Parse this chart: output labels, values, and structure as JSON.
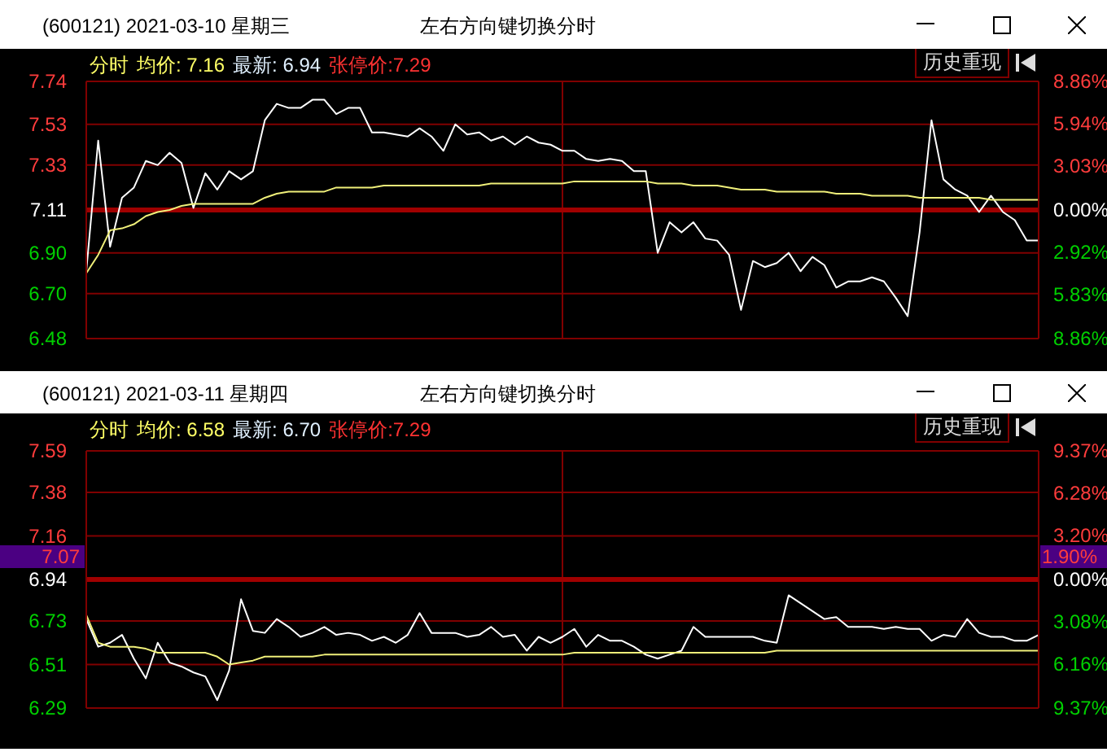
{
  "chart_data": [
    {
      "type": "line",
      "title": "(600121) 2021-03-10 星期三",
      "annotations": [
        "分时",
        "均价: 7.16",
        "最新: 6.94",
        "张停价:7.29",
        "左右方向键切换分时",
        "历史重现"
      ],
      "categories": [
        null,
        null,
        null,
        null,
        null,
        null,
        null,
        null,
        null,
        null,
        null,
        null,
        null,
        null,
        null,
        null,
        null,
        null,
        null,
        null,
        null,
        null,
        null,
        null,
        null,
        null,
        null,
        null,
        null,
        null,
        null,
        null,
        null,
        null,
        null,
        null,
        null,
        null,
        null,
        null,
        null,
        null,
        null,
        null,
        null,
        null,
        null,
        null,
        null,
        null,
        null,
        null,
        null,
        null,
        null,
        null,
        null,
        null,
        null,
        null,
        null,
        null,
        null,
        null,
        null,
        null,
        null,
        null,
        null,
        null,
        null,
        null,
        null,
        null,
        null,
        null,
        null,
        null,
        null,
        null,
        null
      ],
      "series": [
        {
          "color": "#ffffff",
          "values": [
            6.81,
            7.45,
            6.93,
            7.17,
            7.22,
            7.35,
            7.33,
            7.39,
            7.34,
            7.12,
            7.29,
            7.21,
            7.3,
            7.26,
            7.3,
            7.55,
            7.63,
            7.61,
            7.61,
            7.65,
            7.65,
            7.58,
            7.61,
            7.61,
            7.49,
            7.49,
            7.48,
            7.47,
            7.51,
            7.47,
            7.4,
            7.53,
            7.48,
            7.49,
            7.45,
            7.47,
            7.43,
            7.47,
            7.44,
            7.43,
            7.4,
            7.4,
            7.36,
            7.35,
            7.36,
            7.35,
            7.3,
            7.3,
            6.9,
            7.05,
            7.0,
            7.05,
            6.97,
            6.96,
            6.89,
            6.62,
            6.86,
            6.83,
            6.85,
            6.9,
            6.81,
            6.88,
            6.84,
            6.73,
            6.76,
            6.76,
            6.78,
            6.76,
            6.68,
            6.59,
            7.0,
            7.55,
            7.26,
            7.21,
            7.18,
            7.1,
            7.18,
            7.1,
            7.06,
            6.96,
            6.96
          ]
        },
        {
          "color": "#f0f07a",
          "values": [
            6.8,
            6.89,
            7.01,
            7.02,
            7.04,
            7.08,
            7.1,
            7.11,
            7.13,
            7.14,
            7.14,
            7.14,
            7.14,
            7.14,
            7.14,
            7.17,
            7.19,
            7.2,
            7.2,
            7.2,
            7.2,
            7.22,
            7.22,
            7.22,
            7.22,
            7.23,
            7.23,
            7.23,
            7.23,
            7.23,
            7.23,
            7.23,
            7.23,
            7.23,
            7.24,
            7.24,
            7.24,
            7.24,
            7.24,
            7.24,
            7.24,
            7.25,
            7.25,
            7.25,
            7.25,
            7.25,
            7.25,
            7.25,
            7.24,
            7.24,
            7.24,
            7.23,
            7.23,
            7.23,
            7.22,
            7.21,
            7.21,
            7.21,
            7.2,
            7.2,
            7.2,
            7.2,
            7.2,
            7.19,
            7.19,
            7.19,
            7.18,
            7.18,
            7.18,
            7.18,
            7.17,
            7.17,
            7.17,
            7.17,
            7.17,
            7.17,
            7.16,
            7.16,
            7.16,
            7.16,
            7.16
          ]
        }
      ],
      "ylim": [
        6.48,
        7.74
      ],
      "yticks": [
        7.74,
        7.53,
        7.33,
        7.11,
        {
          "value": 6.9,
          "label": "6.90"
        },
        {
          "value": 6.7,
          "label": "6.70"
        },
        6.48
      ],
      "y2lim": [
        -8.86,
        8.86
      ],
      "y2ticks": [
        {
          "value": 8.86,
          "label": "8.86%"
        },
        {
          "value": 5.94,
          "label": "5.94%"
        },
        {
          "value": 3.03,
          "label": "3.03%"
        },
        {
          "value": 0,
          "label": "0.00%"
        },
        {
          "value": -2.92,
          "label": "2.92%"
        },
        {
          "value": -5.83,
          "label": "5.83%"
        },
        {
          "value": -8.86,
          "label": "8.86%"
        }
      ],
      "ref_lines": [
        {
          "axis": "y2",
          "value": 0,
          "color": "#a00000"
        }
      ],
      "grid": true,
      "tick_labels": "y"
    },
    {
      "type": "line",
      "title": "(600121) 2021-03-11 星期四",
      "annotations": [
        "分时",
        "均价: 6.58",
        "最新: 6.70",
        "张停价:7.29",
        "左右方向键切换分时",
        "历史重现",
        "7.07",
        "1.90%"
      ],
      "categories": [
        null,
        null,
        null,
        null,
        null,
        null,
        null,
        null,
        null,
        null,
        null,
        null,
        null,
        null,
        null,
        null,
        null,
        null,
        null,
        null,
        null,
        null,
        null,
        null,
        null,
        null,
        null,
        null,
        null,
        null,
        null,
        null,
        null,
        null,
        null,
        null,
        null,
        null,
        null,
        null,
        null,
        null,
        null,
        null,
        null,
        null,
        null,
        null,
        null,
        null,
        null,
        null,
        null,
        null,
        null,
        null,
        null,
        null,
        null,
        null,
        null,
        null,
        null,
        null,
        null,
        null,
        null,
        null,
        null,
        null,
        null,
        null,
        null,
        null,
        null,
        null,
        null,
        null,
        null,
        null,
        null
      ],
      "series": [
        {
          "color": "#ffffff",
          "values": [
            6.74,
            6.6,
            6.62,
            6.66,
            6.54,
            6.44,
            6.62,
            6.52,
            6.5,
            6.47,
            6.45,
            6.33,
            6.48,
            6.84,
            6.68,
            6.67,
            6.74,
            6.7,
            6.65,
            6.67,
            6.7,
            6.66,
            6.67,
            6.66,
            6.63,
            6.65,
            6.62,
            6.66,
            6.77,
            6.67,
            6.67,
            6.67,
            6.65,
            6.66,
            6.7,
            6.65,
            6.66,
            6.58,
            6.65,
            6.62,
            6.65,
            6.69,
            6.6,
            6.66,
            6.63,
            6.63,
            6.6,
            6.56,
            6.54,
            6.56,
            6.58,
            6.7,
            6.65,
            6.65,
            6.65,
            6.65,
            6.65,
            6.63,
            6.62,
            6.86,
            6.82,
            6.78,
            6.74,
            6.75,
            6.7,
            6.7,
            6.7,
            6.69,
            6.7,
            6.69,
            6.69,
            6.63,
            6.66,
            6.65,
            6.74,
            6.67,
            6.65,
            6.65,
            6.63,
            6.63,
            6.66
          ]
        },
        {
          "color": "#f0f07a",
          "values": [
            6.76,
            6.62,
            6.6,
            6.6,
            6.6,
            6.59,
            6.57,
            6.57,
            6.57,
            6.57,
            6.57,
            6.55,
            6.51,
            6.52,
            6.53,
            6.55,
            6.55,
            6.55,
            6.55,
            6.55,
            6.56,
            6.56,
            6.56,
            6.56,
            6.56,
            6.56,
            6.56,
            6.56,
            6.56,
            6.56,
            6.56,
            6.56,
            6.56,
            6.56,
            6.56,
            6.56,
            6.56,
            6.56,
            6.56,
            6.56,
            6.56,
            6.57,
            6.57,
            6.57,
            6.57,
            6.57,
            6.57,
            6.57,
            6.57,
            6.57,
            6.57,
            6.57,
            6.57,
            6.57,
            6.57,
            6.57,
            6.57,
            6.57,
            6.58,
            6.58,
            6.58,
            6.58,
            6.58,
            6.58,
            6.58,
            6.58,
            6.58,
            6.58,
            6.58,
            6.58,
            6.58,
            6.58,
            6.58,
            6.58,
            6.58,
            6.58,
            6.58,
            6.58,
            6.58,
            6.58,
            6.58
          ]
        }
      ],
      "ylim": [
        6.29,
        7.59
      ],
      "yticks": [
        7.59,
        7.38,
        7.16,
        6.94,
        6.73,
        6.51,
        6.29
      ],
      "y2lim": [
        -9.37,
        9.37
      ],
      "y2ticks": [
        {
          "value": 9.37,
          "label": "9.37%"
        },
        {
          "value": 6.28,
          "label": "6.28%"
        },
        {
          "value": 3.2,
          "label": "3.20%"
        },
        {
          "value": 0,
          "label": "0.00%"
        },
        {
          "value": -3.08,
          "label": "3.08%"
        },
        {
          "value": -6.16,
          "label": "6.16%"
        },
        {
          "value": -9.37,
          "label": "9.37%"
        }
      ],
      "ref_lines": [
        {
          "axis": "y2",
          "value": 0,
          "color": "#a00000"
        }
      ],
      "grid": true,
      "tick_labels": "y"
    }
  ]
}
